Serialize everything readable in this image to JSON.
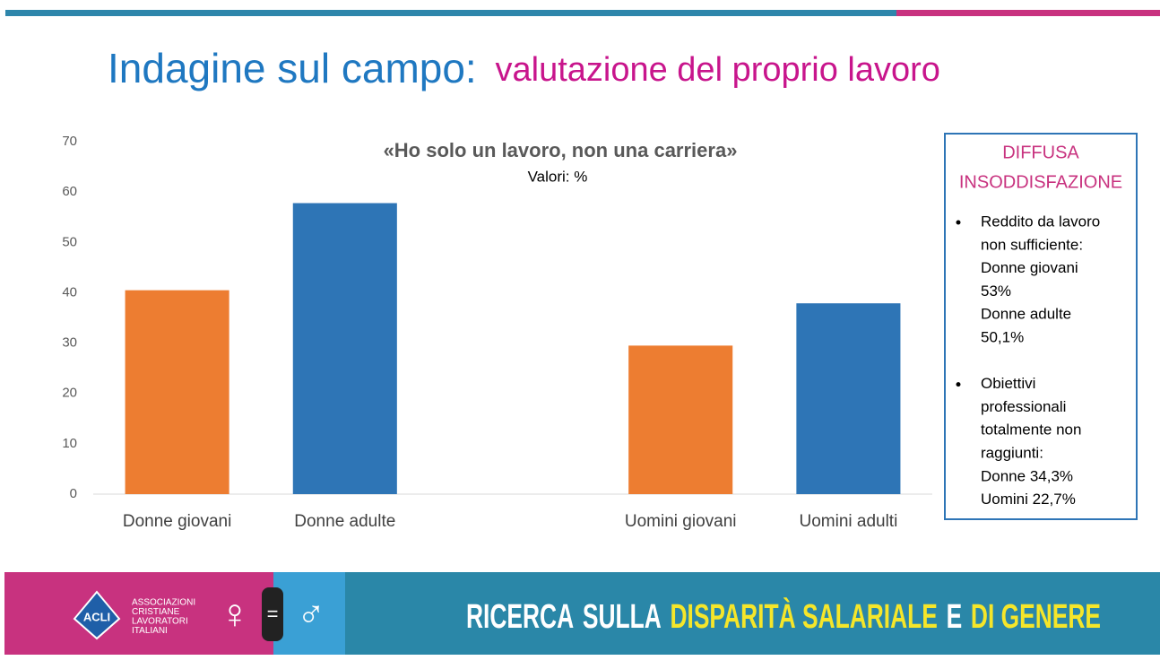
{
  "slide": {
    "title": {
      "main": "Indagine sul campo:",
      "accent": "valutazione del proprio lavoro"
    },
    "sidebox": {
      "heading": [
        "DIFFUSA",
        "INSODDISFAZIONE"
      ],
      "bullets": [
        [
          "Reddito da lavoro",
          "non sufficiente:",
          "Donne giovani",
          "53%",
          "Donne adulte",
          "50,1%"
        ],
        [
          "Obiettivi",
          "professionali",
          "totalmente non",
          "raggiunti:",
          "Donne 34,3%",
          "Uomini 22,7%"
        ]
      ]
    },
    "footer": {
      "logo": "ACLI",
      "org": [
        "ASSOCIAZIONI",
        "CRISTIANE",
        "LAVORATORI",
        "ITALIANI"
      ],
      "banner": [
        "RICERCA",
        "SULLA",
        "DISPARITÀ SALARIALE",
        "E",
        "DI GENERE"
      ]
    }
  },
  "chart_data": {
    "type": "bar",
    "title": "«Ho solo un lavoro, non una carriera»",
    "subtitle": "Valori: %",
    "categories": [
      "Donne giovani",
      "Donne adulte",
      null,
      "Uomini giovani",
      "Uomini adulti"
    ],
    "values": [
      40.5,
      57.8,
      null,
      29.5,
      37.9
    ],
    "colors": [
      "#ed7d31",
      "#2e75b6",
      null,
      "#ed7d31",
      "#2e75b6"
    ],
    "ylim": [
      0,
      70
    ],
    "yticks": [
      0,
      10,
      20,
      30,
      40,
      50,
      60,
      70
    ],
    "grid": false
  }
}
